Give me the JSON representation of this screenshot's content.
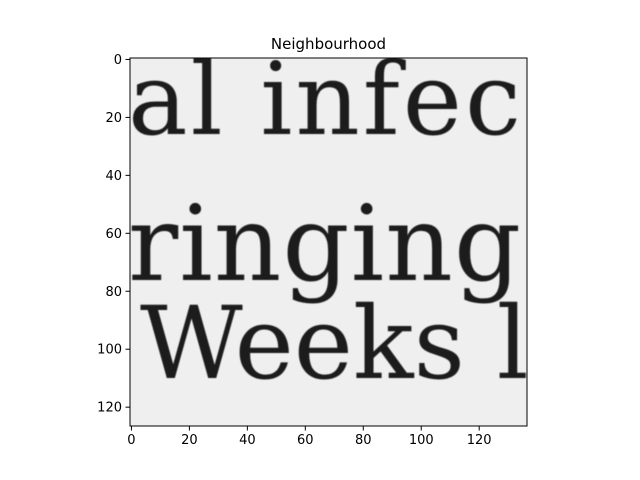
{
  "figure": {
    "title": "Neighbourhood",
    "image_text_lines": [
      "al infec",
      "ringing",
      "Weeks l"
    ],
    "colors": {
      "background": "#ffffff",
      "paper": "#efefef",
      "ink": "#1e1e1e",
      "axis": "#000000"
    }
  },
  "chart_data": {
    "type": "heatmap",
    "title": "Neighbourhood",
    "xlabel": "",
    "ylabel": "",
    "xlim": [
      -0.5,
      136.5
    ],
    "ylim": [
      126.5,
      -0.5
    ],
    "x_ticks": [
      0,
      20,
      40,
      60,
      80,
      100,
      120
    ],
    "y_ticks": [
      0,
      20,
      40,
      60,
      80,
      100,
      120
    ],
    "colormap": "gray",
    "grid": false,
    "content": "grayscale crop of printed text: 'al infec' / 'ringing' / 'Weeks l'"
  }
}
